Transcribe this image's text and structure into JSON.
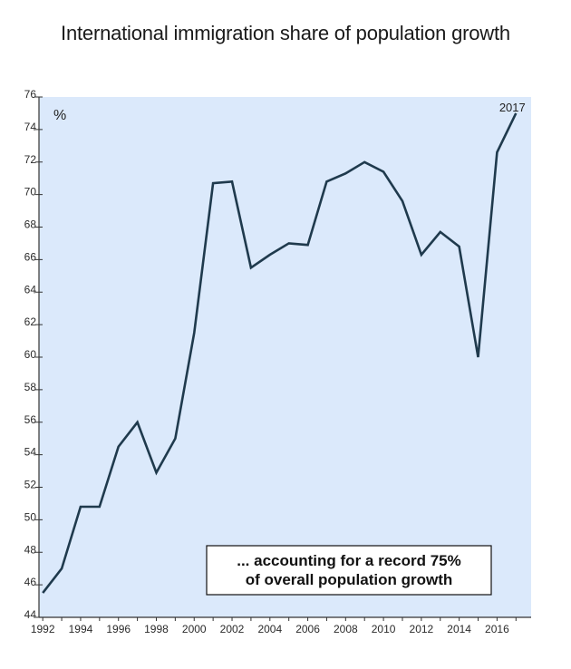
{
  "chart_data": {
    "type": "line",
    "title": "International immigration share of population growth",
    "unit_label": "%",
    "end_label": "2017",
    "callout": {
      "line1": "... accounting for a record 75%",
      "line2": "of overall population growth"
    },
    "xlim": [
      1991.8,
      2017.8
    ],
    "ylim": [
      44,
      76
    ],
    "y_ticks": [
      44,
      46,
      48,
      50,
      52,
      54,
      56,
      58,
      60,
      62,
      64,
      66,
      68,
      70,
      72,
      74,
      76
    ],
    "x_tick_years": [
      1992,
      1993,
      1994,
      1995,
      1996,
      1997,
      1998,
      1999,
      2000,
      2001,
      2002,
      2003,
      2004,
      2005,
      2006,
      2007,
      2008,
      2009,
      2010,
      2011,
      2012,
      2013,
      2014,
      2015,
      2016,
      2017
    ],
    "x_tick_labels": [
      "1992",
      "1994",
      "1996",
      "1998",
      "2000",
      "2002",
      "2004",
      "2006",
      "2008",
      "2010",
      "2012",
      "2014",
      "2016"
    ],
    "grid": false,
    "colors": {
      "plot_background": "#dbe9fb",
      "line": "#1f3a4d",
      "axis": "#333333"
    },
    "series": [
      {
        "x": [
          1992,
          1993,
          1994,
          1995,
          1996,
          1997,
          1998,
          1999,
          2000,
          2001,
          2002,
          2003,
          2004,
          2005,
          2006,
          2007,
          2008,
          2009,
          2010,
          2011,
          2012,
          2013,
          2014,
          2015,
          2016,
          2017
        ],
        "values": [
          45.5,
          47.0,
          50.8,
          50.8,
          54.5,
          56.0,
          52.9,
          55.0,
          61.5,
          70.7,
          70.8,
          65.5,
          66.3,
          67.0,
          66.9,
          70.8,
          71.3,
          72.0,
          71.4,
          69.6,
          66.3,
          67.7,
          66.8,
          60.0,
          72.6,
          75.0
        ]
      }
    ]
  }
}
